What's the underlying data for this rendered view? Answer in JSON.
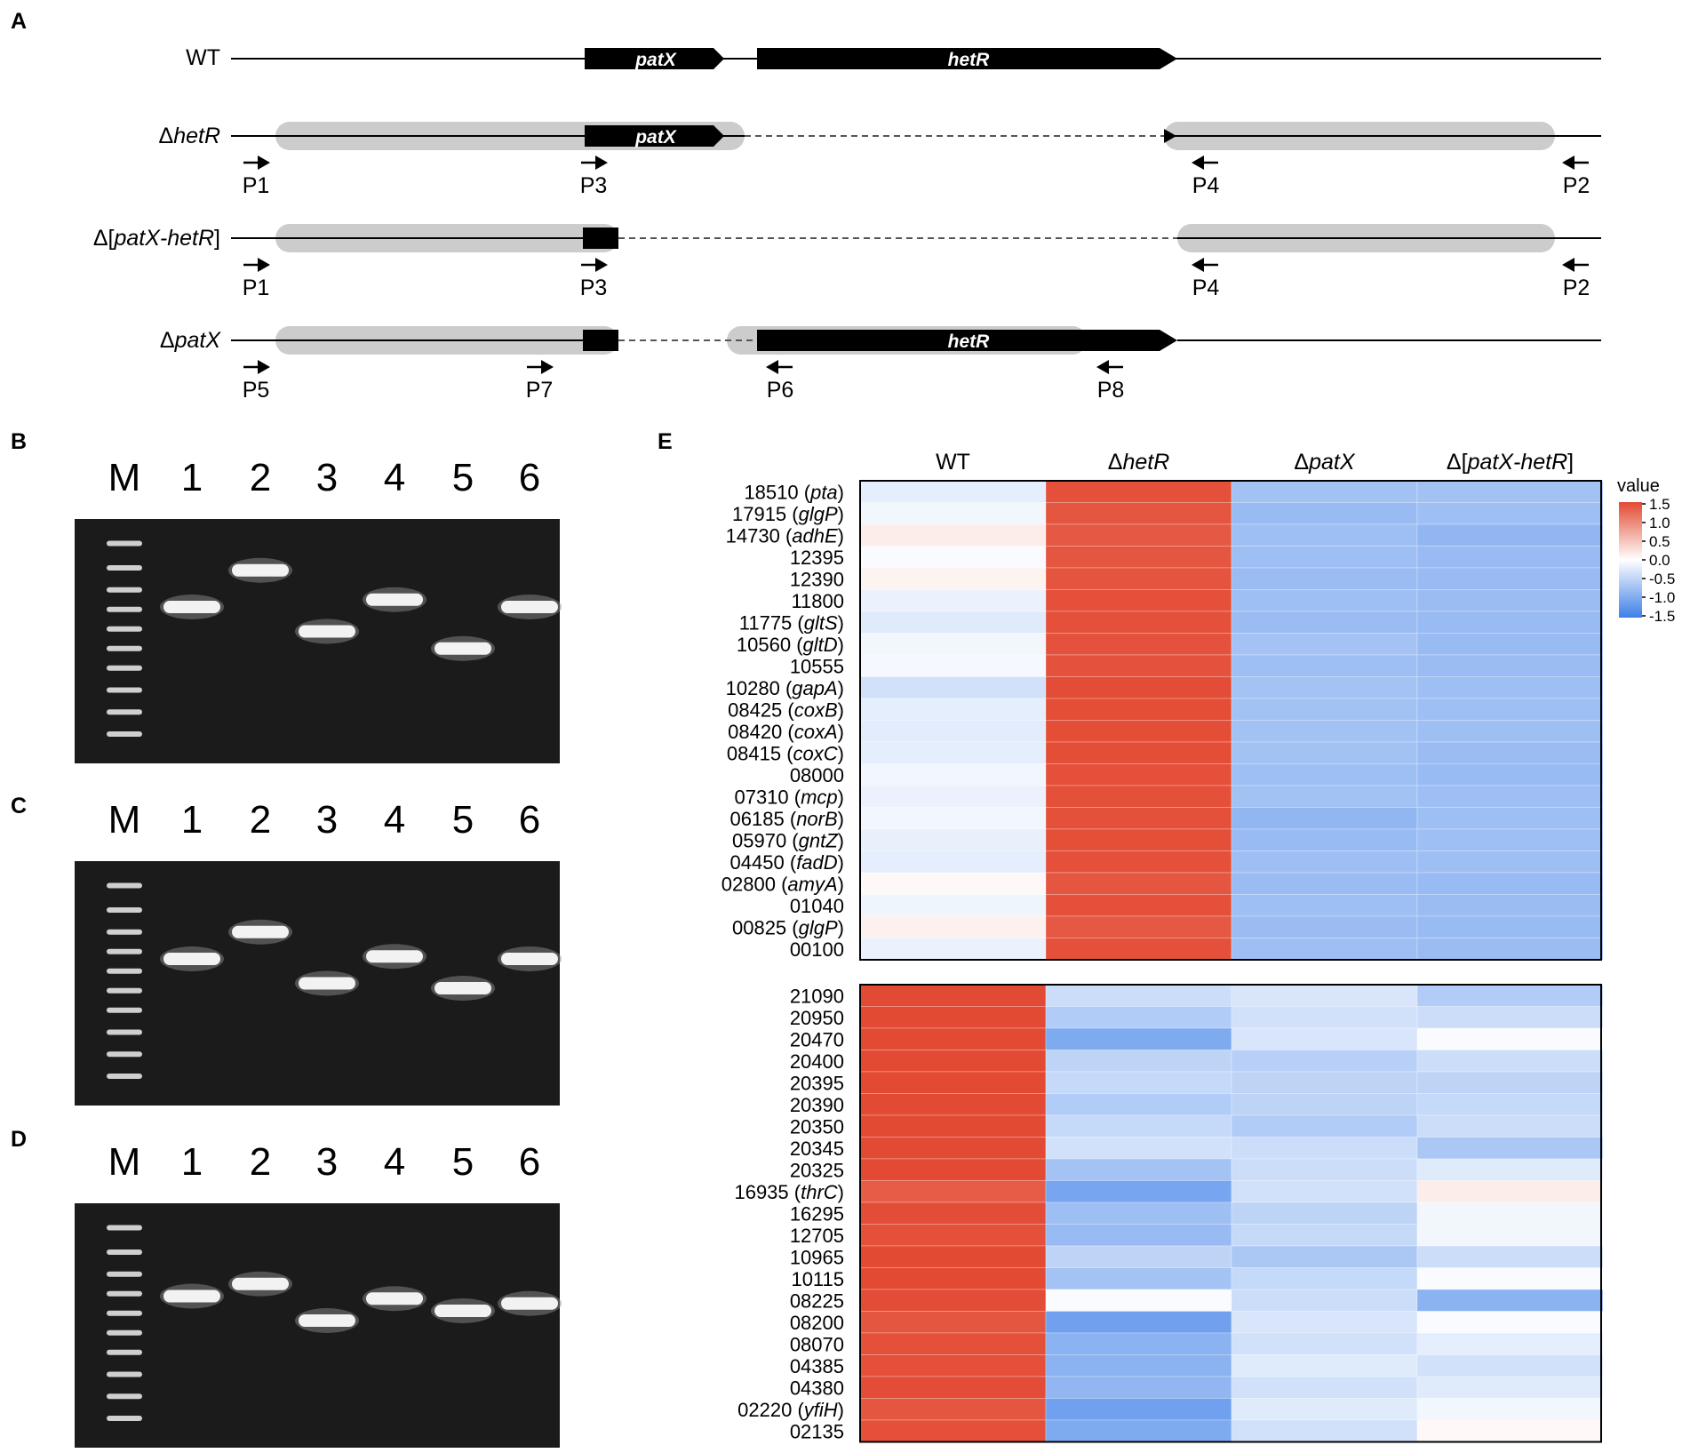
{
  "panels": {
    "a": "A",
    "b": "B",
    "c": "C",
    "d": "D",
    "e": "E"
  },
  "panel_a": {
    "rows": [
      {
        "label": "WT"
      },
      {
        "prefix": "Δ",
        "gene": "hetR"
      },
      {
        "prefix": "Δ[",
        "gene": "patX-hetR",
        "suffix": "]"
      },
      {
        "prefix": "Δ",
        "gene": "patX"
      }
    ],
    "genes": {
      "patx": "patX",
      "hetr": "hetR"
    },
    "primers_row2": [
      "P1",
      "P3",
      "P4",
      "P2"
    ],
    "primers_row3": [
      "P1",
      "P3",
      "P4",
      "P2"
    ],
    "primers_row4": [
      "P5",
      "P7",
      "P6",
      "P8"
    ]
  },
  "gels": {
    "lanes": [
      "M",
      "1",
      "2",
      "3",
      "4",
      "5",
      "6"
    ],
    "b_bands": [
      0.36,
      0.21,
      0.46,
      0.33,
      0.53,
      0.36
    ],
    "c_bands": [
      0.4,
      0.29,
      0.5,
      0.39,
      0.52,
      0.4
    ],
    "d_bands": [
      0.38,
      0.33,
      0.48,
      0.39,
      0.44,
      0.41
    ]
  },
  "chart_data": [
    {
      "type": "heatmap",
      "columns": [
        {
          "prefix": "",
          "gene": "",
          "plain": "WT"
        },
        {
          "prefix": "Δ",
          "gene": "hetR",
          "suffix": ""
        },
        {
          "prefix": "Δ",
          "gene": "patX",
          "suffix": ""
        },
        {
          "prefix": "Δ[",
          "gene": "patX-hetR",
          "suffix": "]"
        }
      ],
      "rows": [
        {
          "id": "18510",
          "gene": "pta",
          "values": [
            -0.2,
            1.45,
            -0.72,
            -0.72
          ]
        },
        {
          "id": "17915",
          "gene": "glgP",
          "values": [
            -0.1,
            1.4,
            -0.8,
            -0.75
          ]
        },
        {
          "id": "14730",
          "gene": "adhE",
          "values": [
            0.15,
            1.38,
            -0.75,
            -0.85
          ]
        },
        {
          "id": "12395",
          "gene": "",
          "values": [
            -0.05,
            1.4,
            -0.75,
            -0.8
          ]
        },
        {
          "id": "12390",
          "gene": "",
          "values": [
            0.1,
            1.42,
            -0.78,
            -0.8
          ]
        },
        {
          "id": "11800",
          "gene": "",
          "values": [
            -0.15,
            1.45,
            -0.75,
            -0.78
          ]
        },
        {
          "id": "11775",
          "gene": "gltS",
          "values": [
            -0.25,
            1.45,
            -0.78,
            -0.8
          ]
        },
        {
          "id": "10560",
          "gene": "gltD",
          "values": [
            -0.1,
            1.43,
            -0.7,
            -0.8
          ]
        },
        {
          "id": "10555",
          "gene": "",
          "values": [
            -0.08,
            1.43,
            -0.75,
            -0.78
          ]
        },
        {
          "id": "10280",
          "gene": "gapA",
          "values": [
            -0.35,
            1.48,
            -0.7,
            -0.75
          ]
        },
        {
          "id": "08425",
          "gene": "coxB",
          "values": [
            -0.2,
            1.47,
            -0.72,
            -0.75
          ]
        },
        {
          "id": "08420",
          "gene": "coxA",
          "values": [
            -0.22,
            1.47,
            -0.72,
            -0.75
          ]
        },
        {
          "id": "08415",
          "gene": "coxC",
          "values": [
            -0.2,
            1.47,
            -0.72,
            -0.78
          ]
        },
        {
          "id": "08000",
          "gene": "",
          "values": [
            -0.1,
            1.45,
            -0.75,
            -0.8
          ]
        },
        {
          "id": "07310",
          "gene": "mcp",
          "values": [
            -0.15,
            1.45,
            -0.72,
            -0.75
          ]
        },
        {
          "id": "06185",
          "gene": "norB",
          "values": [
            -0.1,
            1.45,
            -0.85,
            -0.75
          ]
        },
        {
          "id": "05970",
          "gene": "gntZ",
          "values": [
            -0.18,
            1.46,
            -0.8,
            -0.75
          ]
        },
        {
          "id": "04450",
          "gene": "fadD",
          "values": [
            -0.2,
            1.45,
            -0.75,
            -0.75
          ]
        },
        {
          "id": "02800",
          "gene": "amyA",
          "values": [
            0.05,
            1.4,
            -0.78,
            -0.8
          ]
        },
        {
          "id": "01040",
          "gene": "",
          "values": [
            -0.12,
            1.45,
            -0.75,
            -0.78
          ]
        },
        {
          "id": "00825",
          "gene": "glgP",
          "values": [
            0.12,
            1.38,
            -0.78,
            -0.8
          ]
        },
        {
          "id": "00100",
          "gene": "",
          "values": [
            -0.15,
            1.45,
            -0.75,
            -0.78
          ]
        }
      ],
      "legend": {
        "title": "value",
        "ticks": [
          "1.5",
          "1.0",
          "0.5",
          "0.0",
          "-0.5",
          "-1.0",
          "-1.5"
        ],
        "range": [
          -1.5,
          1.5
        ]
      }
    },
    {
      "type": "heatmap",
      "rows": [
        {
          "id": "21090",
          "gene": "",
          "values": [
            1.5,
            -0.4,
            -0.3,
            -0.6
          ]
        },
        {
          "id": "20950",
          "gene": "",
          "values": [
            1.5,
            -0.6,
            -0.35,
            -0.4
          ]
        },
        {
          "id": "20470",
          "gene": "",
          "values": [
            1.5,
            -1.0,
            -0.3,
            -0.05
          ]
        },
        {
          "id": "20400",
          "gene": "",
          "values": [
            1.5,
            -0.5,
            -0.55,
            -0.4
          ]
        },
        {
          "id": "20395",
          "gene": "",
          "values": [
            1.5,
            -0.45,
            -0.5,
            -0.5
          ]
        },
        {
          "id": "20390",
          "gene": "",
          "values": [
            1.5,
            -0.6,
            -0.5,
            -0.45
          ]
        },
        {
          "id": "20350",
          "gene": "",
          "values": [
            1.5,
            -0.45,
            -0.6,
            -0.4
          ]
        },
        {
          "id": "20345",
          "gene": "",
          "values": [
            1.5,
            -0.35,
            -0.4,
            -0.65
          ]
        },
        {
          "id": "20325",
          "gene": "",
          "values": [
            1.5,
            -0.7,
            -0.4,
            -0.25
          ]
        },
        {
          "id": "16935",
          "gene": "thrC",
          "values": [
            1.35,
            -1.05,
            -0.35,
            0.15
          ]
        },
        {
          "id": "16295",
          "gene": "",
          "values": [
            1.48,
            -0.75,
            -0.5,
            -0.1
          ]
        },
        {
          "id": "12705",
          "gene": "",
          "values": [
            1.45,
            -0.8,
            -0.45,
            -0.1
          ]
        },
        {
          "id": "10965",
          "gene": "",
          "values": [
            1.5,
            -0.5,
            -0.65,
            -0.4
          ]
        },
        {
          "id": "10115",
          "gene": "",
          "values": [
            1.5,
            -0.7,
            -0.45,
            -0.05
          ]
        },
        {
          "id": "08225",
          "gene": "",
          "values": [
            1.48,
            -0.05,
            -0.4,
            -0.9
          ]
        },
        {
          "id": "08200",
          "gene": "",
          "values": [
            1.4,
            -1.1,
            -0.3,
            -0.05
          ]
        },
        {
          "id": "08070",
          "gene": "",
          "values": [
            1.45,
            -0.9,
            -0.35,
            -0.2
          ]
        },
        {
          "id": "04385",
          "gene": "",
          "values": [
            1.45,
            -0.9,
            -0.25,
            -0.35
          ]
        },
        {
          "id": "04380",
          "gene": "",
          "values": [
            1.48,
            -0.85,
            -0.35,
            -0.25
          ]
        },
        {
          "id": "02220",
          "gene": "yfiH",
          "values": [
            1.4,
            -1.1,
            -0.25,
            -0.1
          ]
        },
        {
          "id": "02135",
          "gene": "",
          "values": [
            1.45,
            -1.0,
            -0.35,
            0.05
          ]
        }
      ]
    }
  ],
  "colors": {
    "high": "#e34a33",
    "mid": "#ffffff",
    "low": "#3d7fe8",
    "gene_fill": "#000000",
    "homology": "#cccccc"
  }
}
